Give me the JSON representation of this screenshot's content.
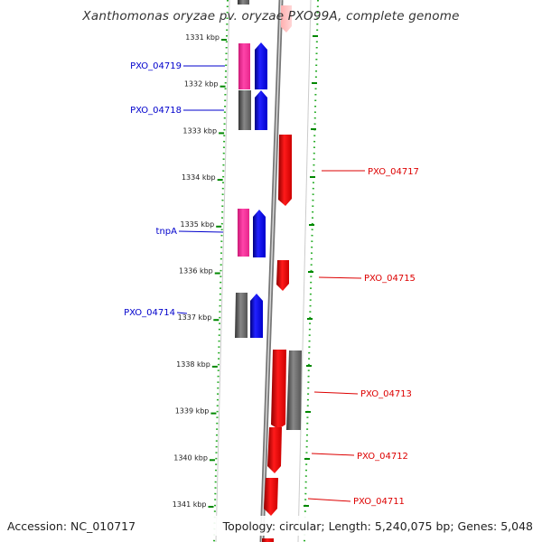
{
  "title": "Xanthomonas oryzae pv. oryzae PXO99A, complete genome",
  "footer": {
    "accession": "Accession: NC_010717",
    "summary": "Topology: circular; Length: 5,240,075 bp; Genes: 5,048"
  },
  "ticks": [
    "1331 kbp",
    "1332 kbp",
    "1333 kbp",
    "1334 kbp",
    "1335 kbp",
    "1336 kbp",
    "1337 kbp",
    "1338 kbp",
    "1339 kbp",
    "1340 kbp",
    "1341 kbp"
  ],
  "colors": {
    "forward_strand": "#0000ee",
    "reverse_strand": "#ee0000",
    "cog_pink": "#ff3399",
    "cog_gray": "#666666",
    "tick_green": "#008800",
    "backbone": "#888888"
  },
  "genes_left": [
    {
      "label": "PXO_04719"
    },
    {
      "label": "PXO_04718"
    },
    {
      "label": "tnpA"
    },
    {
      "label": "PXO_04714"
    }
  ],
  "genes_right": [
    {
      "label": "PXO_04717"
    },
    {
      "label": "PXO_04715"
    },
    {
      "label": "PXO_04713"
    },
    {
      "label": "PXO_04712"
    },
    {
      "label": "PXO_04711"
    }
  ]
}
